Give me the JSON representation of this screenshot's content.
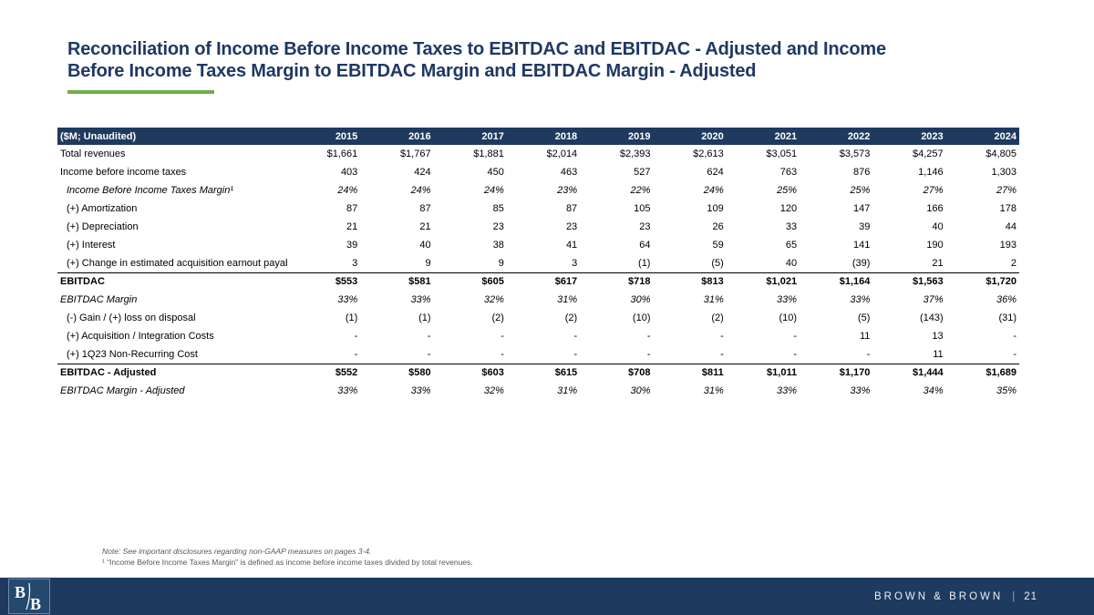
{
  "colors": {
    "navy": "#1e3a5f",
    "title-navy": "#1f3864",
    "green": "#70ad47",
    "note-gray": "#595959"
  },
  "header": {
    "title_line1": "Reconciliation of Income Before Income Taxes to EBITDAC and EBITDAC - Adjusted and Income",
    "title_line2": "Before Income Taxes Margin to EBITDAC Margin and EBITDAC Margin - Adjusted"
  },
  "table": {
    "columns": [
      "($M; Unaudited)",
      "2015",
      "2016",
      "2017",
      "2018",
      "2019",
      "2020",
      "2021",
      "2022",
      "2023",
      "2024"
    ],
    "rows": [
      {
        "label": "Total revenues",
        "classes": [],
        "values": [
          "$1,661",
          "$1,767",
          "$1,881",
          "$2,014",
          "$2,393",
          "$2,613",
          "$3,051",
          "$3,573",
          "$4,257",
          "$4,805"
        ]
      },
      {
        "label": "Income before income taxes",
        "classes": [],
        "values": [
          "403",
          "424",
          "450",
          "463",
          "527",
          "624",
          "763",
          "876",
          "1,146",
          "1,303"
        ]
      },
      {
        "label": "Income Before Income Taxes Margin¹",
        "classes": [
          "indent",
          "italic"
        ],
        "values": [
          "24%",
          "24%",
          "24%",
          "23%",
          "22%",
          "24%",
          "25%",
          "25%",
          "27%",
          "27%"
        ]
      },
      {
        "label": "(+) Amortization",
        "classes": [
          "indent"
        ],
        "values": [
          "87",
          "87",
          "85",
          "87",
          "105",
          "109",
          "120",
          "147",
          "166",
          "178"
        ]
      },
      {
        "label": "(+) Depreciation",
        "classes": [
          "indent"
        ],
        "values": [
          "21",
          "21",
          "23",
          "23",
          "23",
          "26",
          "33",
          "39",
          "40",
          "44"
        ]
      },
      {
        "label": "(+) Interest",
        "classes": [
          "indent"
        ],
        "values": [
          "39",
          "40",
          "38",
          "41",
          "64",
          "59",
          "65",
          "141",
          "190",
          "193"
        ]
      },
      {
        "label": "(+) Change in estimated acquisition earnout payables",
        "classes": [
          "indent"
        ],
        "values": [
          "3",
          "9",
          "9",
          "3",
          "(1)",
          "(5)",
          "40",
          "(39)",
          "21",
          "2"
        ]
      },
      {
        "label": "EBITDAC",
        "classes": [
          "bold",
          "rule-top"
        ],
        "values": [
          "$553",
          "$581",
          "$605",
          "$617",
          "$718",
          "$813",
          "$1,021",
          "$1,164",
          "$1,563",
          "$1,720"
        ]
      },
      {
        "label": "EBITDAC Margin",
        "classes": [
          "italic"
        ],
        "values": [
          "33%",
          "33%",
          "32%",
          "31%",
          "30%",
          "31%",
          "33%",
          "33%",
          "37%",
          "36%"
        ]
      },
      {
        "label": "(-) Gain / (+) loss on disposal",
        "classes": [
          "indent"
        ],
        "values": [
          "(1)",
          "(1)",
          "(2)",
          "(2)",
          "(10)",
          "(2)",
          "(10)",
          "(5)",
          "(143)",
          "(31)"
        ]
      },
      {
        "label": "(+) Acquisition / Integration Costs",
        "classes": [
          "indent"
        ],
        "values": [
          "-",
          "-",
          "-",
          "-",
          "-",
          "-",
          "-",
          "11",
          "13",
          "-"
        ]
      },
      {
        "label": "(+) 1Q23 Non-Recurring Cost",
        "classes": [
          "indent"
        ],
        "values": [
          "-",
          "-",
          "-",
          "-",
          "-",
          "-",
          "-",
          "-",
          "11",
          "-"
        ]
      },
      {
        "label": "EBITDAC - Adjusted",
        "classes": [
          "bold",
          "rule-top"
        ],
        "values": [
          "$552",
          "$580",
          "$603",
          "$615",
          "$708",
          "$811",
          "$1,011",
          "$1,170",
          "$1,444",
          "$1,689"
        ]
      },
      {
        "label": "EBITDAC Margin - Adjusted",
        "classes": [
          "italic"
        ],
        "values": [
          "33%",
          "33%",
          "32%",
          "31%",
          "30%",
          "31%",
          "33%",
          "33%",
          "34%",
          "35%"
        ]
      }
    ]
  },
  "notes": {
    "note1": "Note: See important disclosures regarding non-GAAP measures on pages 3-4.",
    "footnote1": "¹ “Income Before Income Taxes Margin” is defined as income before income taxes divided by total revenues."
  },
  "footer": {
    "brand": "BROWN & BROWN",
    "separator": "|",
    "page": "21"
  }
}
